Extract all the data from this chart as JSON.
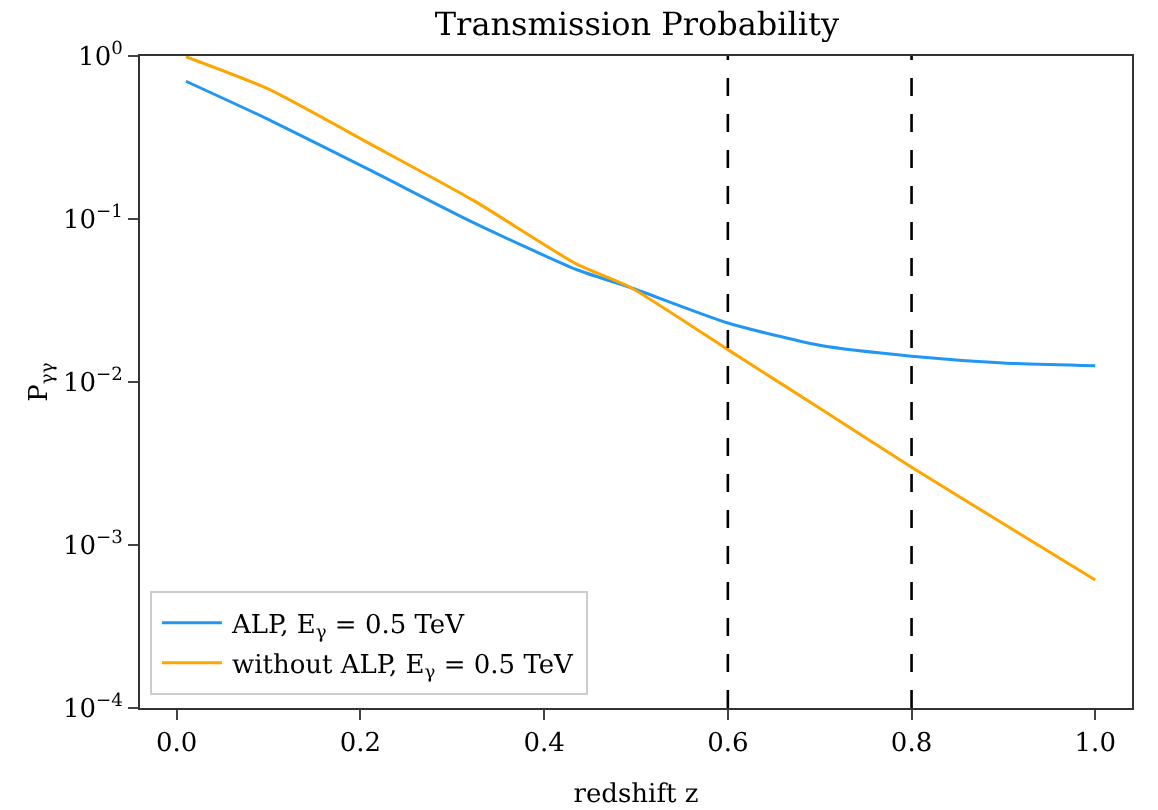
{
  "chart_data": {
    "type": "line",
    "title": "Transmission Probability",
    "xlabel": "redshift z",
    "ylabel": "P$_{γγ}$",
    "x": [
      0.01,
      0.099,
      0.21,
      0.323,
      0.435,
      0.494,
      0.6,
      0.7,
      0.8,
      0.9,
      1.0
    ],
    "series": [
      {
        "name": "ALP, E$_{γ}$ = 0.5 TeV",
        "color": "#2196f3",
        "values": [
          0.7,
          0.41,
          0.2,
          0.095,
          0.049,
          0.038,
          0.023,
          0.0168,
          0.0144,
          0.0131,
          0.0126
        ]
      },
      {
        "name": "without ALP, E$_{γ}$ = 0.5 TeV",
        "color": "#ffa500",
        "values": [
          0.99,
          0.63,
          0.29,
          0.13,
          0.053,
          0.038,
          0.0158,
          0.0069,
          0.003,
          0.00135,
          0.00061
        ]
      }
    ],
    "log": "y",
    "xlim": [
      -0.04,
      1.04
    ],
    "ylim": [
      0.0001,
      1
    ],
    "xticks": [
      {
        "value": 0,
        "label": "0.0"
      },
      0.2,
      0.4,
      0.6,
      0.8,
      {
        "value": 1,
        "label": "1.0"
      }
    ],
    "yticks": [
      {
        "value": 0.0001,
        "label": "10$^{−4}$"
      },
      {
        "value": 0.001,
        "label": "10$^{−3}$"
      },
      {
        "value": 0.01,
        "label": "10$^{−2}$"
      },
      {
        "value": 0.1,
        "label": "10$^{−1}$"
      },
      {
        "value": 1,
        "label": "10$^{0}$"
      }
    ],
    "ref_lines": [
      {
        "axis": "x",
        "value": 0.6,
        "color": "#000000",
        "line_style": "dashed"
      },
      {
        "axis": "x",
        "value": 0.8,
        "color": "#000000",
        "line_style": "dashed"
      }
    ],
    "grid": false,
    "legend": "bottom left",
    "line_style": "solid",
    "marker": "none"
  }
}
